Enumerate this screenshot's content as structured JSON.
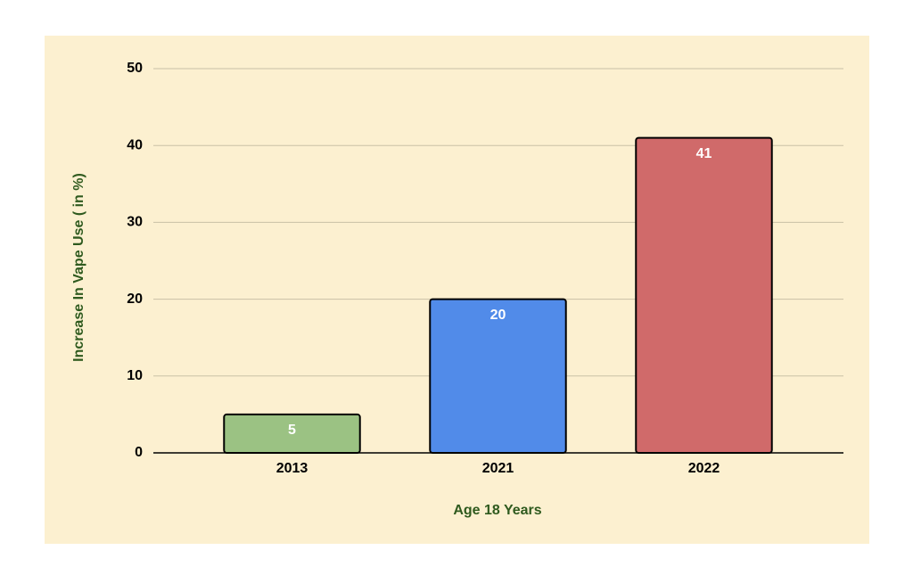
{
  "chart_data": {
    "type": "bar",
    "categories": [
      "2013",
      "2021",
      "2022"
    ],
    "values": [
      5,
      20,
      41
    ],
    "colors": [
      "#9bc283",
      "#518be9",
      "#d06a6a"
    ],
    "x_label": "Age 18 Years",
    "y_label": "Increase In Vape Use ( in %)",
    "ylim": [
      0,
      50
    ],
    "yticks": [
      0,
      10,
      20,
      30,
      40,
      50
    ],
    "grid": true
  }
}
